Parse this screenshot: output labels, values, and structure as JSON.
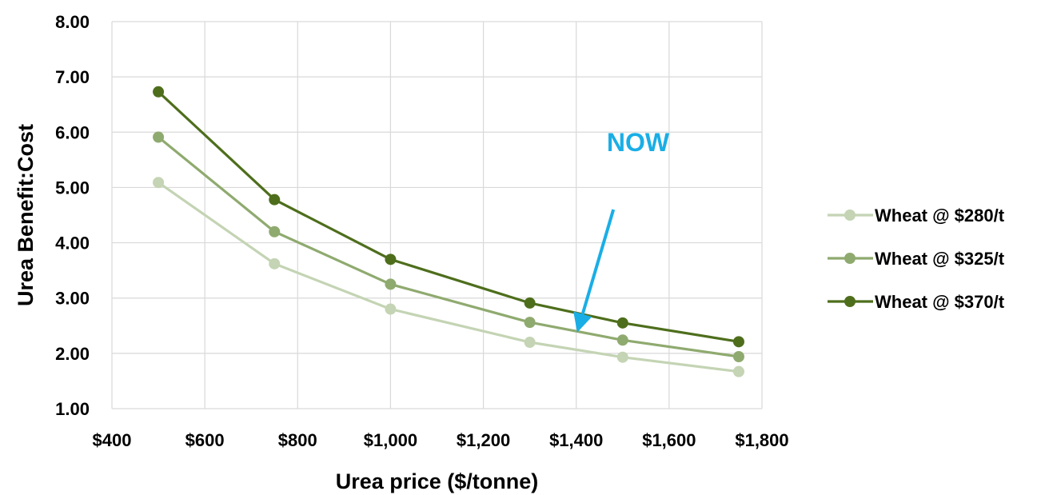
{
  "chart_data": {
    "type": "line",
    "xlabel": "Urea price ($/tonne)",
    "ylabel": "Urea Benefit:Cost",
    "xlim": [
      400,
      1800
    ],
    "ylim": [
      1.0,
      8.0
    ],
    "x_ticks": [
      400,
      600,
      800,
      1000,
      1200,
      1400,
      1600,
      1800
    ],
    "x_tick_labels": [
      "$400",
      "$600",
      "$800",
      "$1,000",
      "$1,200",
      "$1,400",
      "$1,600",
      "$1,800"
    ],
    "y_ticks": [
      1,
      2,
      3,
      4,
      5,
      6,
      7,
      8
    ],
    "y_tick_labels": [
      "1.00",
      "2.00",
      "3.00",
      "4.00",
      "5.00",
      "6.00",
      "7.00",
      "8.00"
    ],
    "grid": true,
    "legend_position": "right",
    "x": [
      500,
      750,
      1000,
      1300,
      1500,
      1750
    ],
    "series": [
      {
        "name": "Wheat @ $280/t",
        "color": "#c4d4b4",
        "values": [
          5.09,
          3.62,
          2.8,
          2.2,
          1.93,
          1.67
        ]
      },
      {
        "name": "Wheat @ $325/t",
        "color": "#8faa6f",
        "values": [
          5.91,
          4.2,
          3.25,
          2.56,
          2.24,
          1.94
        ]
      },
      {
        "name": "Wheat @ $370/t",
        "color": "#4e6e1c",
        "values": [
          6.73,
          4.78,
          3.7,
          2.91,
          2.55,
          2.21
        ]
      }
    ],
    "annotation": {
      "text": "NOW",
      "color": "#1aaee6",
      "arrow_from": [
        1480,
        4.6
      ],
      "arrow_to": [
        1400,
        2.4
      ]
    }
  }
}
